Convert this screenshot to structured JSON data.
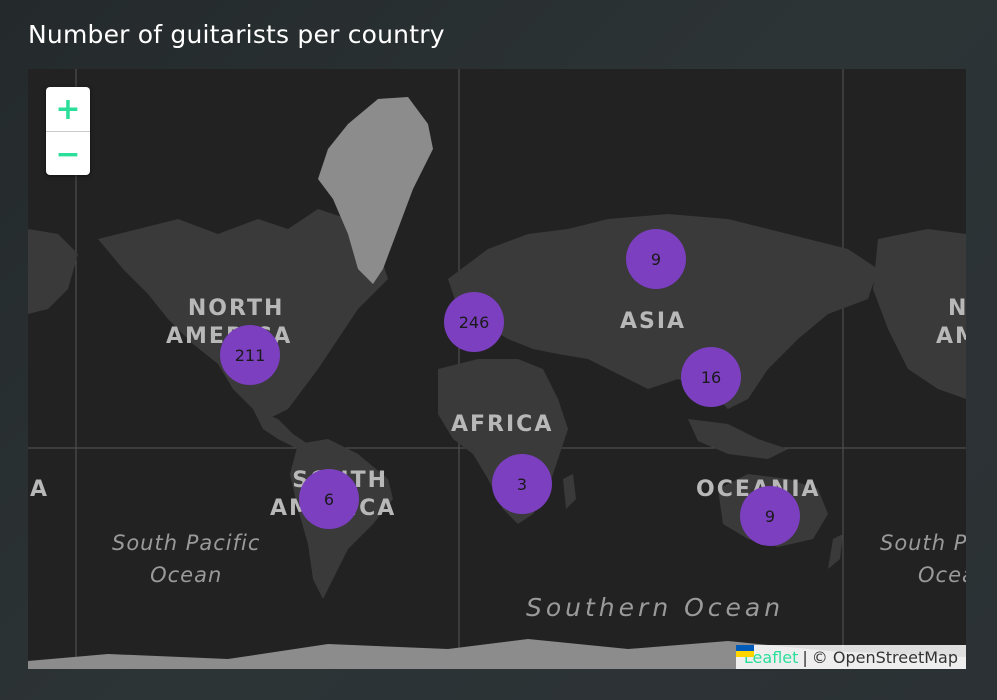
{
  "title": "Number of guitarists per country",
  "zoom": {
    "in_label": "+",
    "out_label": "−"
  },
  "continents": {
    "north_america_1": "NORTH",
    "north_america_2": "AMERICA",
    "south_america_1": "SOUTH",
    "south_america_2": "AMERICA",
    "asia": "ASIA",
    "africa": "AFRICA",
    "oceania": "OCEANIA",
    "left_edge": "A",
    "right_edge_1": "N",
    "right_edge_2": "AM"
  },
  "oceans": {
    "south_pacific_1": "South Pacific",
    "south_pacific_2": "Ocean",
    "southern": "Southern Ocean",
    "right_pacific_1": "South P",
    "right_pacific_2": "Ocea"
  },
  "clusters": [
    {
      "label": "211",
      "region": "North America"
    },
    {
      "label": "246",
      "region": "Europe"
    },
    {
      "label": "9",
      "region": "Russia"
    },
    {
      "label": "16",
      "region": "East Asia"
    },
    {
      "label": "6",
      "region": "South America"
    },
    {
      "label": "3",
      "region": "Southern Africa"
    },
    {
      "label": "9",
      "region": "Oceania"
    }
  ],
  "attribution": {
    "leaflet": "Leaflet",
    "separator": "|",
    "osm": "© OpenStreetMap"
  },
  "colors": {
    "cluster": "#7b3fbf",
    "land": "#3a3a3a",
    "ice": "#9a9a9a",
    "water": "#222222",
    "accent": "#2bdf9a"
  }
}
